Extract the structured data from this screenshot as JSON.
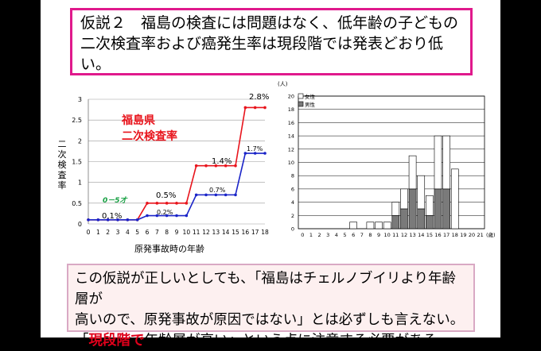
{
  "hypothesis": {
    "text": "仮説２　福島の検査には問題はなく、低年齢の子どもの二次検査率および癌発生率は現段階では発表どおり低い。"
  },
  "note": {
    "line1": "この仮説が正しいとしても、「福島はチェルノブイリより年齢層が",
    "line2": "高いので、原発事故が原因ではない」とは必ずしも言えない。",
    "line3_open": "「",
    "line3_red": "現段階で",
    "line3_rest": "年齢層が高い」という点に注意する必要がある。"
  },
  "chart_data": [
    {
      "type": "line",
      "title": "福島県\n二次検査率",
      "title_lines": [
        "福島県",
        "二次検査率"
      ],
      "ylabel": "二次検査率",
      "xlabel": "原発事故時の年齢",
      "x": [
        0,
        1,
        2,
        3,
        4,
        5,
        6,
        7,
        8,
        9,
        10,
        11,
        12,
        13,
        14,
        15,
        16,
        17,
        18
      ],
      "ylim": [
        0,
        3
      ],
      "yticks": [
        "0",
        "0.5",
        "1",
        "1.5",
        "2",
        "2.5",
        "3"
      ],
      "grid": true,
      "colors": {
        "red": "#e8141c",
        "blue": "#1a24c8"
      },
      "series": [
        {
          "values": [
            0.1,
            0.1,
            0.1,
            0.1,
            0.1,
            0.1,
            0.5,
            0.5,
            0.5,
            0.5,
            0.5,
            1.4,
            1.4,
            1.4,
            1.4,
            1.4,
            2.8,
            2.8,
            2.8
          ]
        },
        {
          "values": [
            0.1,
            0.1,
            0.1,
            0.1,
            0.1,
            0.1,
            0.2,
            0.2,
            0.2,
            0.2,
            0.2,
            0.7,
            0.7,
            0.7,
            0.7,
            0.7,
            1.7,
            1.7,
            1.7
          ]
        }
      ],
      "annotations": {
        "age_range": "0－5才",
        "r01": "0.1%",
        "r05": "0.5%",
        "b02": "0.2%",
        "b07": "0.7%",
        "r14": "1.4%",
        "b17": "1.7%",
        "r28": "2.8%"
      }
    },
    {
      "type": "bar",
      "ylabel": "(人)",
      "xlabel_suffix": "(歳)",
      "x": [
        0,
        1,
        2,
        3,
        4,
        5,
        6,
        7,
        8,
        9,
        10,
        11,
        12,
        13,
        14,
        15,
        16,
        17,
        18,
        19,
        20,
        21
      ],
      "ylim": [
        0,
        20
      ],
      "yticks": [
        "0",
        "2",
        "4",
        "6",
        "8",
        "10",
        "12",
        "14",
        "16",
        "18",
        "20"
      ],
      "grid": true,
      "legend": {
        "position": "top-left",
        "female": "女性",
        "male": "男性"
      },
      "colors": {
        "female": "#ffffff",
        "male": "#7a7a7a"
      },
      "series": [
        {
          "name": "女性",
          "values": [
            0,
            0,
            0,
            0,
            0,
            0,
            1,
            0,
            1,
            1,
            1,
            2,
            3,
            5,
            5,
            3,
            8,
            8,
            9,
            0,
            0,
            0
          ]
        },
        {
          "name": "男性",
          "values": [
            0,
            0,
            0,
            0,
            0,
            0,
            0,
            0,
            0,
            0,
            0,
            2,
            3,
            6,
            3,
            2,
            6,
            6,
            0,
            0,
            0,
            0
          ]
        }
      ]
    }
  ]
}
